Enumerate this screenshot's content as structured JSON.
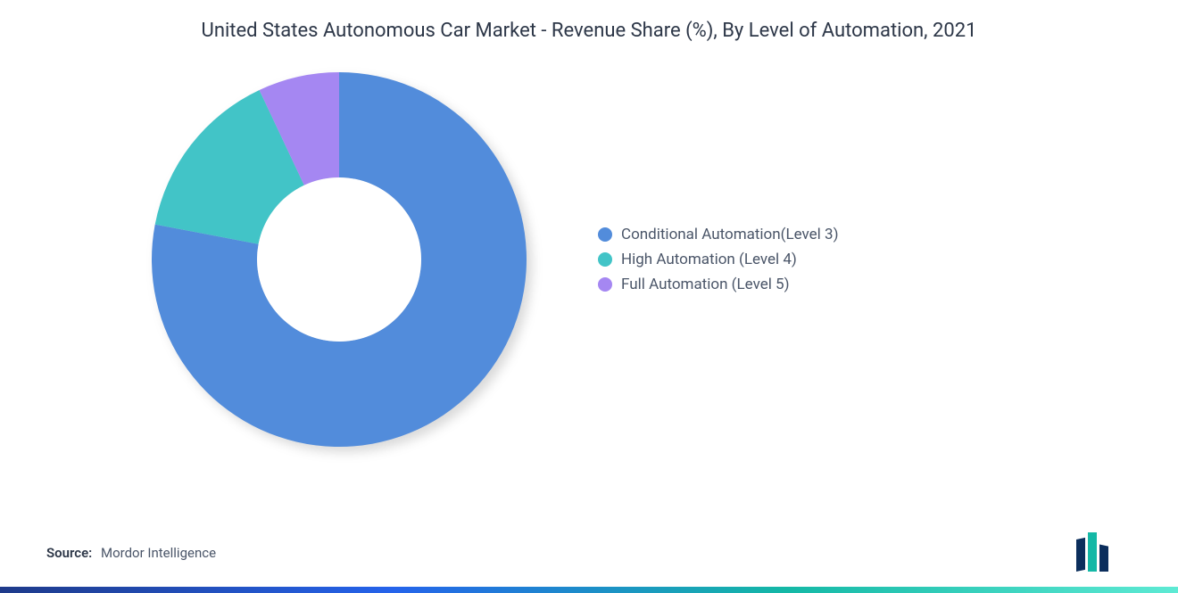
{
  "chart": {
    "type": "donut",
    "title": "United States Autonomous Car Market - Revenue Share (%), By Level of Automation, 2021",
    "title_fontsize": 22,
    "title_color": "#2d3748",
    "background_color": "#ffffff",
    "donut_outer_radius": 210,
    "donut_inner_radius": 92,
    "shadow_color": "rgba(0,0,0,0.15)",
    "segments": [
      {
        "label": "Conditional Automation(Level 3)",
        "value": 78,
        "color": "#528cdb"
      },
      {
        "label": "High Automation (Level 4)",
        "value": 15,
        "color": "#42c4c7"
      },
      {
        "label": "Full Automation (Level 5)",
        "value": 7,
        "color": "#a587f2"
      }
    ],
    "inner_circle_color": "#ffffff",
    "legend": {
      "position": "right",
      "fontsize": 17,
      "text_color": "#4a5568",
      "swatch_shape": "circle",
      "swatch_size": 16
    }
  },
  "source": {
    "label": "Source:",
    "value": "Mordor Intelligence",
    "fontsize": 15,
    "label_color": "#2d3748",
    "value_color": "#4a5568"
  },
  "gradient_bar": {
    "height": 7,
    "colors": [
      "#1e3a8a",
      "#2563eb",
      "#14b8a6",
      "#5eead4"
    ]
  },
  "logo": {
    "name": "MI",
    "bar_colors": [
      "#0b2e5c",
      "#14b8a6",
      "#0b2e5c"
    ],
    "text_color": "#0b2e5c"
  }
}
